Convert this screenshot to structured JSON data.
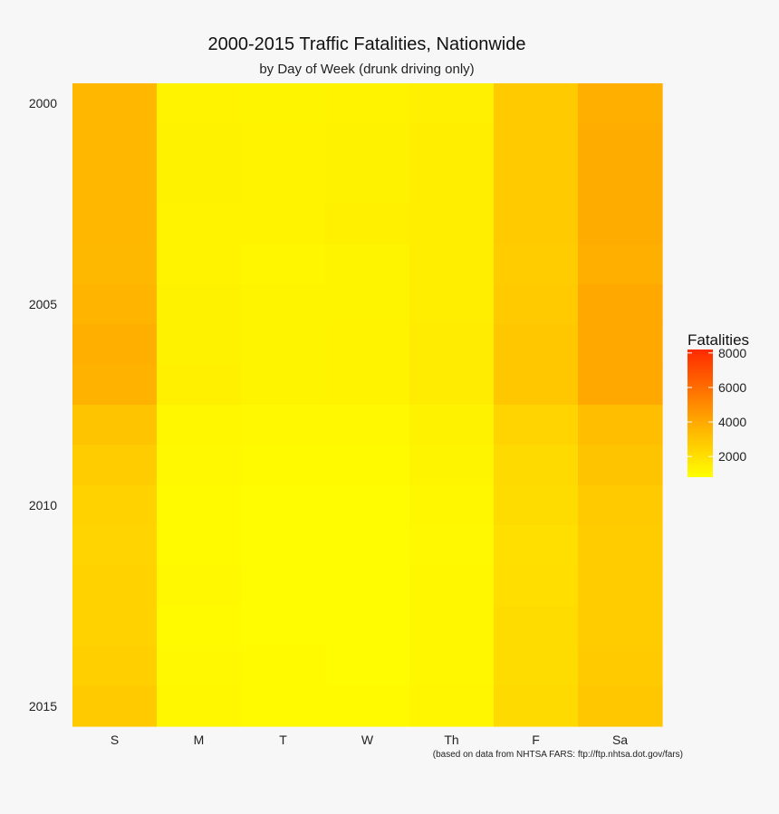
{
  "chart_data": {
    "type": "heatmap",
    "title": "2000-2015 Traffic Fatalities, Nationwide",
    "subtitle": "by Day of Week (drunk driving only)",
    "caption": "(based on data from NHTSA FARS: ftp://ftp.nhtsa.dot.gov/fars)",
    "x_categories": [
      "S",
      "M",
      "T",
      "W",
      "Th",
      "F",
      "Sa"
    ],
    "y_categories": [
      "2000",
      "2001",
      "2002",
      "2003",
      "2004",
      "2005",
      "2006",
      "2007",
      "2008",
      "2009",
      "2010",
      "2011",
      "2012",
      "2013",
      "2014",
      "2015"
    ],
    "y_tick_labels": [
      "2000",
      "2005",
      "2010",
      "2015"
    ],
    "values": [
      [
        3500,
        1250,
        1200,
        1250,
        1400,
        2800,
        3800
      ],
      [
        3500,
        1300,
        1250,
        1300,
        1450,
        2800,
        3900
      ],
      [
        3500,
        1300,
        1250,
        1300,
        1450,
        2800,
        3900
      ],
      [
        3500,
        1250,
        1250,
        1350,
        1450,
        2800,
        3900
      ],
      [
        3450,
        1250,
        1150,
        1200,
        1450,
        2700,
        3800
      ],
      [
        3600,
        1300,
        1200,
        1200,
        1450,
        2800,
        4000
      ],
      [
        3800,
        1300,
        1200,
        1250,
        1500,
        2900,
        4000
      ],
      [
        3700,
        1350,
        1200,
        1250,
        1500,
        2900,
        4000
      ],
      [
        3000,
        1100,
        1050,
        1050,
        1300,
        2400,
        3200
      ],
      [
        2700,
        1050,
        1000,
        1000,
        1200,
        2200,
        3000
      ],
      [
        2500,
        1000,
        950,
        950,
        1100,
        2100,
        2800
      ],
      [
        2400,
        1000,
        950,
        950,
        1050,
        2000,
        2700
      ],
      [
        2500,
        1050,
        950,
        950,
        1100,
        2050,
        2700
      ],
      [
        2500,
        1000,
        950,
        950,
        1100,
        2100,
        2700
      ],
      [
        2600,
        1050,
        1000,
        950,
        1100,
        2100,
        2800
      ],
      [
        2800,
        1100,
        1000,
        1000,
        1150,
        2200,
        2900
      ]
    ],
    "legend": {
      "title": "Fatalities",
      "ticks": [
        2000,
        4000,
        6000,
        8000
      ],
      "range": [
        800,
        8200
      ],
      "low_color": "#ffff00",
      "high_color": "#ff2a00",
      "placement": "right"
    }
  }
}
